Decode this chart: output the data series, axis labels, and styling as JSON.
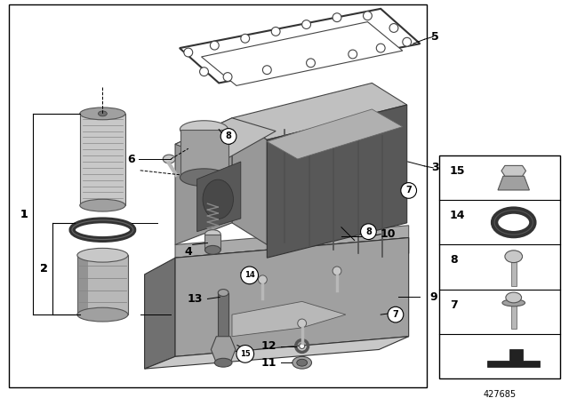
{
  "background_color": "#ffffff",
  "border_color": "#000000",
  "diagram_number": "427685",
  "label_fontsize": 9,
  "circle_fontsize": 7,
  "text_color": "#000000",
  "colors": {
    "light_gray": "#c8c8c8",
    "med_gray": "#a0a0a0",
    "dark_gray": "#707070",
    "very_dark": "#404040",
    "silver": "#b8b8b8",
    "dark_silver": "#888888",
    "gasket_color": "#909090",
    "filter_body": "#b0b0b0",
    "filter_dark": "#787878",
    "pan_top": "#909090",
    "pan_side": "#686868",
    "housing_light": "#c0c0c0",
    "housing_mid": "#989898",
    "housing_dark": "#585858"
  }
}
